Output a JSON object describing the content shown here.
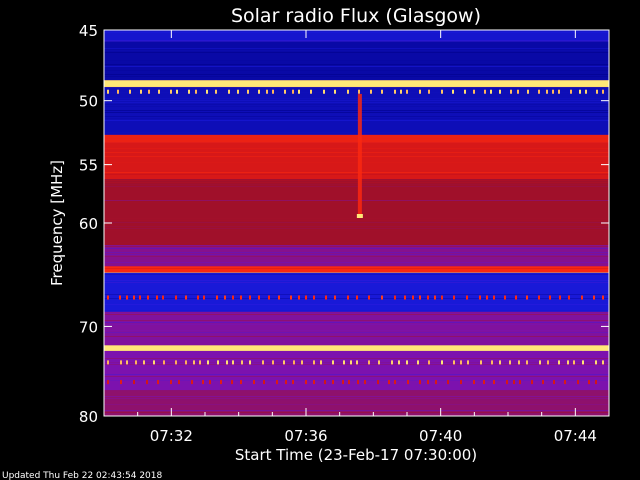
{
  "chart_data": {
    "type": "heatmap",
    "title": "Solar radio Flux (Glasgow)",
    "ylabel": "Frequency [MHz]",
    "xlabel": "Start Time (23-Feb-17 07:30:00)",
    "x_tick_labels": [
      "07:32",
      "07:36",
      "07:40",
      "07:44"
    ],
    "x_tick_minutes": [
      2,
      6,
      10,
      14
    ],
    "x_range_minutes": [
      0,
      15
    ],
    "y_tick_labels": [
      "45",
      "50",
      "55",
      "60",
      "70",
      "80"
    ],
    "y_ticks_mhz": [
      45,
      50,
      55,
      60,
      70,
      80
    ],
    "y_range_mhz": [
      45,
      80
    ],
    "y_scale": "log",
    "y_orientation": "frequency increases downward",
    "colormap": [
      "#00008b",
      "#1e1ee6",
      "#7a12b4",
      "#a0102a",
      "#c4101c",
      "#ff2a10",
      "#ffe878"
    ],
    "bands": [
      {
        "from_mhz": 45,
        "to_mhz": 45.8,
        "level": 0.12
      },
      {
        "from_mhz": 45.8,
        "to_mhz": 48.5,
        "level": 0.05
      },
      {
        "from_mhz": 48.5,
        "to_mhz": 49.0,
        "level": 1.0
      },
      {
        "from_mhz": 49.0,
        "to_mhz": 52.6,
        "level": 0.08
      },
      {
        "from_mhz": 52.6,
        "to_mhz": 53.2,
        "level": 0.78
      },
      {
        "from_mhz": 53.2,
        "to_mhz": 56.2,
        "level": 0.72
      },
      {
        "from_mhz": 56.2,
        "to_mhz": 62.0,
        "level": 0.5
      },
      {
        "from_mhz": 62.0,
        "to_mhz": 64.0,
        "level": 0.38
      },
      {
        "from_mhz": 64.0,
        "to_mhz": 64.6,
        "level": 0.82
      },
      {
        "from_mhz": 64.6,
        "to_mhz": 68.5,
        "level": 0.14
      },
      {
        "from_mhz": 68.5,
        "to_mhz": 72.0,
        "level": 0.36
      },
      {
        "from_mhz": 72.0,
        "to_mhz": 72.6,
        "level": 1.0
      },
      {
        "from_mhz": 72.6,
        "to_mhz": 77.0,
        "level": 0.34
      },
      {
        "from_mhz": 77.0,
        "to_mhz": 80.0,
        "level": 0.42
      }
    ],
    "burst": {
      "minute": 7.6,
      "from_mhz": 49.5,
      "to_mhz": 59.5
    }
  },
  "footer": {
    "updated": "Updated Thu Feb 22 02:43:54 2018"
  }
}
